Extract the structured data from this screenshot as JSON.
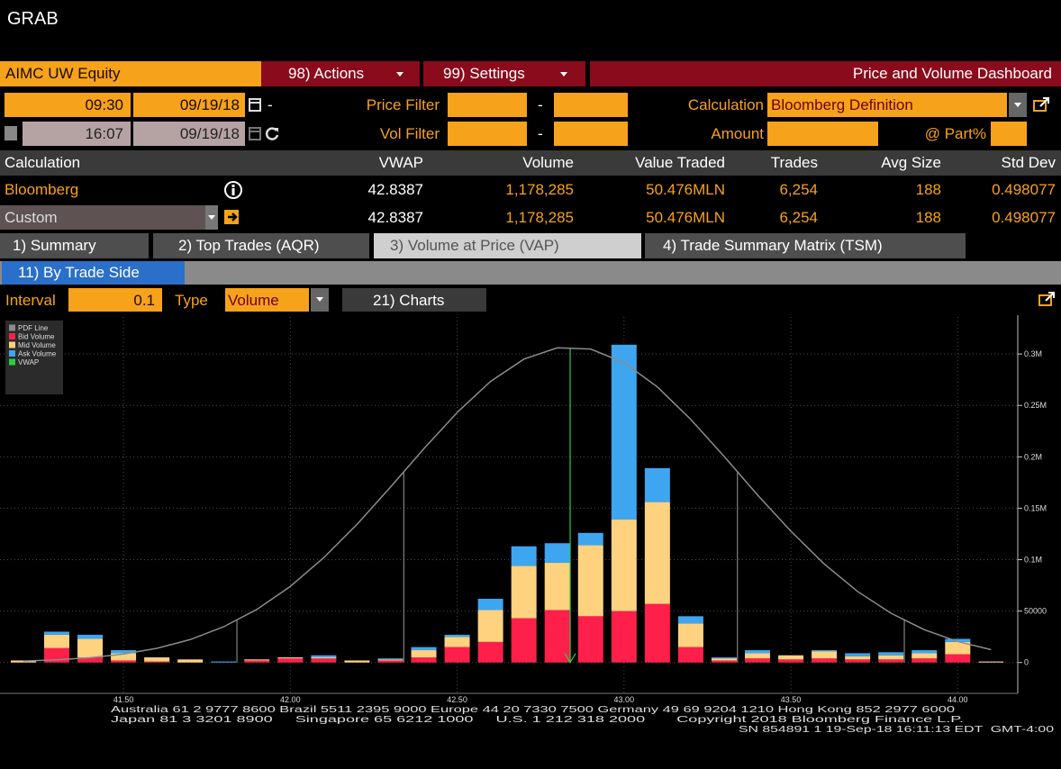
{
  "header": {
    "title": "GRAB"
  },
  "toolbar": {
    "security": "AIMC UW Equity",
    "actions": "98) Actions",
    "settings": "99) Settings",
    "dashboard": "Price and Volume Dashboard"
  },
  "filters": {
    "start_time": "09:30",
    "start_date": "09/19/18",
    "end_time": "16:07",
    "end_date": "09/19/18",
    "separator": "-",
    "price_filter": "Price Filter",
    "vol_filter": "Vol Filter",
    "calculation_label": "Calculation",
    "calculation_value": "Bloomberg Definition",
    "amount": "Amount",
    "part": "@ Part%"
  },
  "table": {
    "header": [
      "Calculation",
      "VWAP",
      "Volume",
      "Value Traded",
      "Trades",
      "Avg Size",
      "Std Dev"
    ],
    "rows": [
      [
        "Bloomberg",
        "42.8387",
        "1,178,285",
        "50.476MLN",
        "6,254",
        "188",
        "0.498077"
      ],
      [
        "Custom",
        "42.8387",
        "1,178,285",
        "50.476MLN",
        "6,254",
        "188",
        "0.498077"
      ]
    ]
  },
  "tabs": [
    "1) Summary",
    "2) Top Trades (AQR)",
    "3) Volume at Price (VAP)",
    "4) Trade Summary Matrix (TSM)"
  ],
  "subtab": "11) By Trade Side",
  "controls": {
    "interval_label": "Interval",
    "interval": "0.1",
    "type_label": "Type",
    "type": "Volume",
    "charts": "21) Charts"
  },
  "chart_data": {
    "type": "bar",
    "stacked": true,
    "x": [
      41.2,
      41.3,
      41.4,
      41.5,
      41.6,
      41.7,
      41.8,
      41.9,
      42.0,
      42.1,
      42.2,
      42.3,
      42.4,
      42.5,
      42.6,
      42.7,
      42.8,
      42.9,
      43.0,
      43.1,
      43.2,
      43.3,
      43.4,
      43.5,
      43.6,
      43.7,
      43.8,
      43.9,
      44.0,
      44.1
    ],
    "line_series": {
      "name": "PDF Line",
      "color": "#8c8c8c",
      "values": [
        1400,
        2600,
        4700,
        8200,
        13800,
        22300,
        34700,
        51700,
        74000,
        101900,
        134400,
        170500,
        207800,
        243100,
        273300,
        295000,
        306000,
        304800,
        291600,
        268000,
        236400,
        200400,
        163000,
        127700,
        95800,
        69100,
        47900,
        31900,
        20400,
        12500
      ]
    },
    "series": [
      {
        "name": "Bid Volume",
        "color": "#ff1f4b",
        "values": [
          0,
          14000,
          5000,
          2000,
          1000,
          0,
          0,
          2000,
          4000,
          4000,
          0,
          2000,
          5000,
          15000,
          20000,
          43000,
          51000,
          45000,
          50000,
          57000,
          15000,
          2000,
          4000,
          3000,
          4000,
          3000,
          3000,
          4000,
          8000,
          0
        ]
      },
      {
        "name": "Mid Volume",
        "color": "#ffd27f",
        "values": [
          2000,
          13000,
          18000,
          7000,
          4000,
          3000,
          0,
          1000,
          1000,
          1000,
          2000,
          1000,
          7000,
          10000,
          31000,
          51000,
          46000,
          69000,
          89000,
          99000,
          23000,
          2000,
          5000,
          4000,
          7000,
          3000,
          4000,
          5000,
          12000,
          1000
        ]
      },
      {
        "name": "Ask Volume",
        "color": "#3ea6f0",
        "values": [
          0,
          3000,
          4000,
          3000,
          0,
          0,
          1000,
          0,
          0,
          2000,
          0,
          1000,
          3000,
          2000,
          11000,
          19000,
          19000,
          12000,
          170000,
          33000,
          7000,
          1000,
          3000,
          0,
          1000,
          3000,
          3000,
          3000,
          3000,
          0
        ]
      }
    ],
    "vwap": {
      "name": "VWAP",
      "color": "#2ecc40",
      "value": 42.8387
    },
    "std_lines": [
      41.84,
      42.34,
      43.34,
      43.84
    ],
    "xlim": [
      41.13,
      44.18
    ],
    "xticks": [
      {
        "value": 41.5,
        "label": "41.50"
      },
      {
        "value": 42.0,
        "label": "42.00"
      },
      {
        "value": 42.5,
        "label": "42.50"
      },
      {
        "value": 43.0,
        "label": "43.00"
      },
      {
        "value": 43.5,
        "label": "43.50"
      },
      {
        "value": 44.0,
        "label": "44.00"
      }
    ],
    "ylim": [
      -30000,
      336000
    ],
    "yticks": [
      0,
      50000,
      {
        "value": 100000,
        "label": "0.1M"
      },
      {
        "value": 150000,
        "label": "0.15M"
      },
      {
        "value": 200000,
        "label": "0.2M"
      },
      {
        "value": 250000,
        "label": "0.25M"
      },
      {
        "value": 300000,
        "label": "0.3M"
      }
    ],
    "grid": true,
    "legend": "upper left"
  },
  "footer": [
    "Australia 61 2 9777 8600 Brazil 5511 2395 9000 Europe 44 20 7330 7500 Germany 49 69 9204 1210 Hong Kong 852 2977 6000",
    "Japan 81 3 3201 8900     Singapore 65 6212 1000     U.S. 1 212 318 2000       Copyright 2018 Bloomberg Finance L.P.",
    "SN 854891 1 19-Sep-18 16:11:13 EDT  GMT-4:00"
  ]
}
